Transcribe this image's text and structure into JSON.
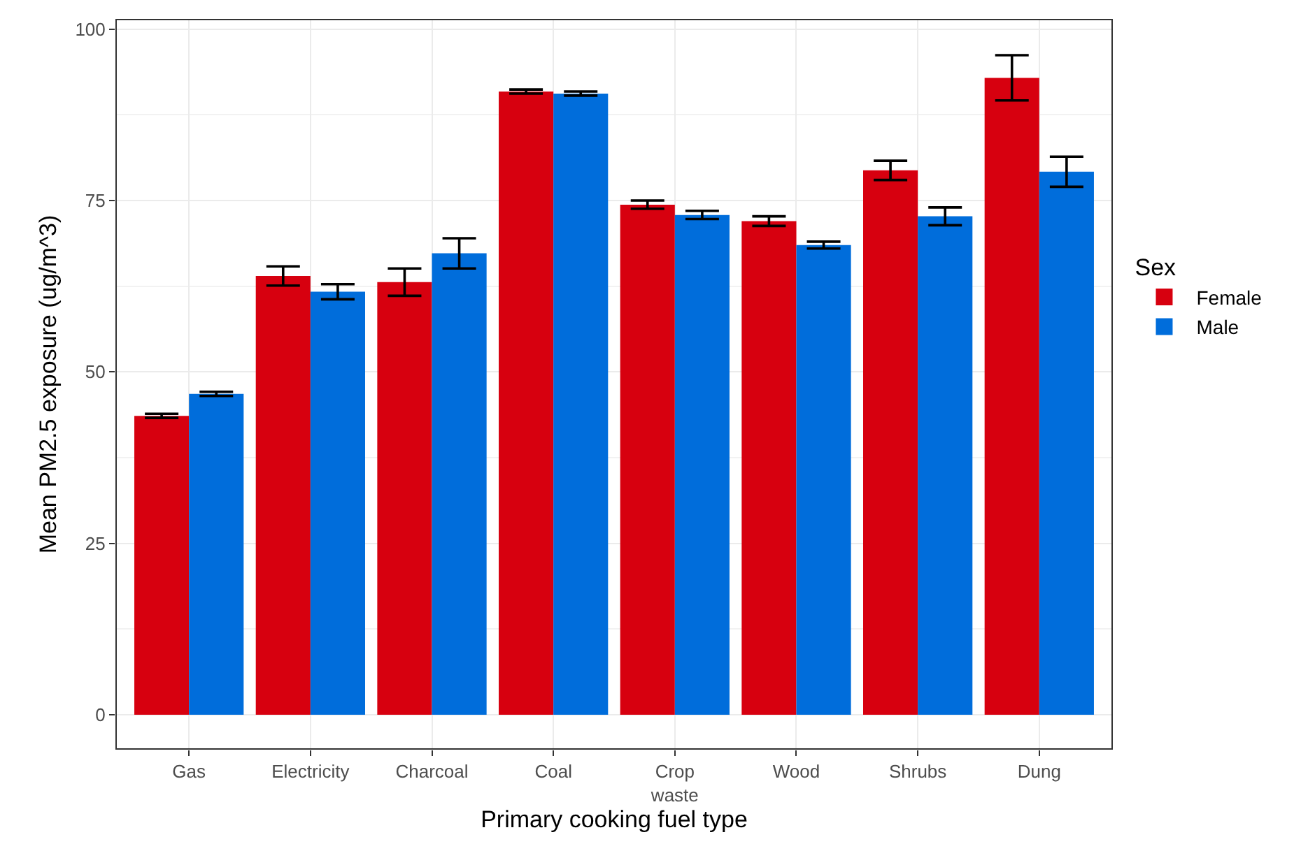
{
  "chart_data": {
    "type": "bar",
    "xlabel": "Primary cooking fuel type",
    "ylabel": "Mean PM2.5 exposure (ug/m^3)",
    "legend_title": "Sex",
    "categories": [
      "Gas",
      "Electricity",
      "Charcoal",
      "Coal",
      "Crop waste",
      "Wood",
      "Shrubs",
      "Dung"
    ],
    "series": [
      {
        "name": "Female",
        "color": "#d7000f",
        "values": [
          43.6,
          64.0,
          63.1,
          90.9,
          74.4,
          72.0,
          79.4,
          92.9
        ],
        "errors": [
          0.3,
          1.4,
          2.0,
          0.3,
          0.6,
          0.7,
          1.4,
          3.3
        ]
      },
      {
        "name": "Male",
        "color": "#006ddb",
        "values": [
          46.8,
          61.7,
          67.3,
          90.6,
          72.9,
          68.5,
          72.7,
          79.2
        ],
        "errors": [
          0.3,
          1.1,
          2.2,
          0.3,
          0.6,
          0.5,
          1.3,
          2.2
        ]
      }
    ],
    "ylim": [
      -5,
      101.4
    ],
    "yticks": [
      0,
      25,
      50,
      75,
      100
    ],
    "grid": true,
    "legend": "right"
  }
}
